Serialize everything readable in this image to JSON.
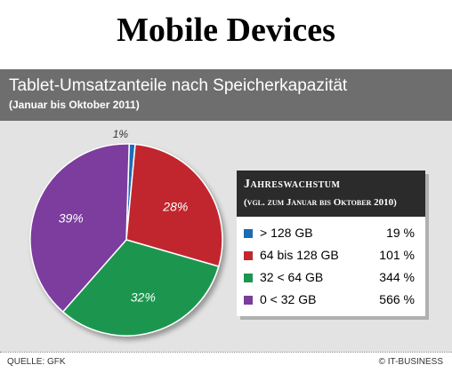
{
  "page": {
    "title": "Mobile Devices",
    "source": "QUELLE: GFK",
    "credit": "© IT-BUSINESS"
  },
  "chart_data": {
    "type": "pie",
    "title": "Tablet-Umsatzanteile nach Speicherkapazität",
    "subtitle": "(Januar bis Oktober 2011)",
    "slices": [
      {
        "label": "> 128 GB",
        "value": 1,
        "display": "1%",
        "color": "#1a6cb5",
        "growth": "19 %"
      },
      {
        "label": "64 bis 128 GB",
        "value": 28,
        "display": "28%",
        "color": "#c1272d",
        "growth": "101 %"
      },
      {
        "label": "32 < 64 GB",
        "value": 32,
        "display": "32%",
        "color": "#1a9650",
        "growth": "344 %"
      },
      {
        "label": "0 < 32 GB",
        "value": 39,
        "display": "39%",
        "color": "#7b3c9e",
        "growth": "566 %"
      }
    ],
    "legend": {
      "title": "Jahreswachstum",
      "subtitle": "(vgl. zum Januar bis Oktober 2010)",
      "placement": "right"
    }
  }
}
